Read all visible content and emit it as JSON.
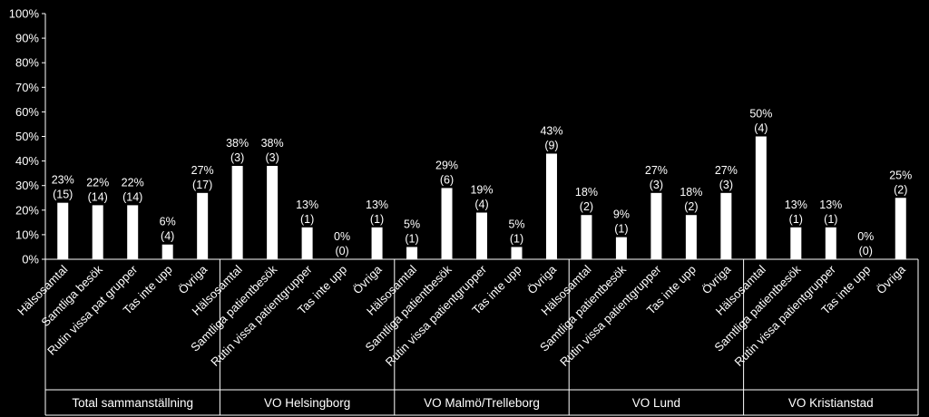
{
  "chart_data": {
    "type": "bar",
    "title": "",
    "xlabel": "",
    "ylabel": "",
    "ylim": [
      0,
      100
    ],
    "y_ticks": [
      "0%",
      "10%",
      "20%",
      "30%",
      "40%",
      "50%",
      "60%",
      "70%",
      "80%",
      "90%",
      "100%"
    ],
    "grid": false,
    "groups": [
      {
        "name": "Total sammanställning",
        "bars": [
          {
            "category": "Hälsosamtal",
            "value": 23,
            "pct_label": "23%",
            "count_label": "(15)"
          },
          {
            "category": "Samtliga besök",
            "value": 22,
            "pct_label": "22%",
            "count_label": "(14)"
          },
          {
            "category": "Rutin vissa pat grupper",
            "value": 22,
            "pct_label": "22%",
            "count_label": "(14)"
          },
          {
            "category": "Tas inte upp",
            "value": 6,
            "pct_label": "6%",
            "count_label": "(4)"
          },
          {
            "category": "Övriga",
            "value": 27,
            "pct_label": "27%",
            "count_label": "(17)"
          }
        ]
      },
      {
        "name": "VO Helsingborg",
        "bars": [
          {
            "category": "Hälsosamtal",
            "value": 38,
            "pct_label": "38%",
            "count_label": "(3)"
          },
          {
            "category": "Samtliga patientbesök",
            "value": 38,
            "pct_label": "38%",
            "count_label": "(3)"
          },
          {
            "category": "Rutin vissa patientgrupper",
            "value": 13,
            "pct_label": "13%",
            "count_label": "(1)"
          },
          {
            "category": "Tas inte upp",
            "value": 0,
            "pct_label": "0%",
            "count_label": "(0)"
          },
          {
            "category": "Övriga",
            "value": 13,
            "pct_label": "13%",
            "count_label": "(1)"
          }
        ]
      },
      {
        "name": "VO Malmö/Trelleborg",
        "bars": [
          {
            "category": "Hälsosamtal",
            "value": 5,
            "pct_label": "5%",
            "count_label": "(1)"
          },
          {
            "category": "Samtliga patientbesök",
            "value": 29,
            "pct_label": "29%",
            "count_label": "(6)"
          },
          {
            "category": "Rutin vissa patientgrupper",
            "value": 19,
            "pct_label": "19%",
            "count_label": "(4)"
          },
          {
            "category": "Tas inte upp",
            "value": 5,
            "pct_label": "5%",
            "count_label": "(1)"
          },
          {
            "category": "Övriga",
            "value": 43,
            "pct_label": "43%",
            "count_label": "(9)"
          }
        ]
      },
      {
        "name": "VO Lund",
        "bars": [
          {
            "category": "Hälsosamtal",
            "value": 18,
            "pct_label": "18%",
            "count_label": "(2)"
          },
          {
            "category": "Samtliga patientbesök",
            "value": 9,
            "pct_label": "9%",
            "count_label": "(1)"
          },
          {
            "category": "Rutin vissa patientgrupper",
            "value": 27,
            "pct_label": "27%",
            "count_label": "(3)"
          },
          {
            "category": "Tas inte upp",
            "value": 18,
            "pct_label": "18%",
            "count_label": "(2)"
          },
          {
            "category": "Övriga",
            "value": 27,
            "pct_label": "27%",
            "count_label": "(3)"
          }
        ]
      },
      {
        "name": "VO Kristianstad",
        "bars": [
          {
            "category": "Hälsosamtal",
            "value": 50,
            "pct_label": "50%",
            "count_label": "(4)"
          },
          {
            "category": "Samtliga patientbesök",
            "value": 13,
            "pct_label": "13%",
            "count_label": "(1)"
          },
          {
            "category": "Rutin vissa patientgrupper",
            "value": 13,
            "pct_label": "13%",
            "count_label": "(1)"
          },
          {
            "category": "Tas inte upp",
            "value": 0,
            "pct_label": "0%",
            "count_label": "(0)"
          },
          {
            "category": "Övriga",
            "value": 25,
            "pct_label": "25%",
            "count_label": "(2)"
          }
        ]
      }
    ],
    "colors": {
      "background": "#000000",
      "bar": "#ffffff",
      "text": "#ffffff",
      "axis": "#ffffff"
    }
  }
}
